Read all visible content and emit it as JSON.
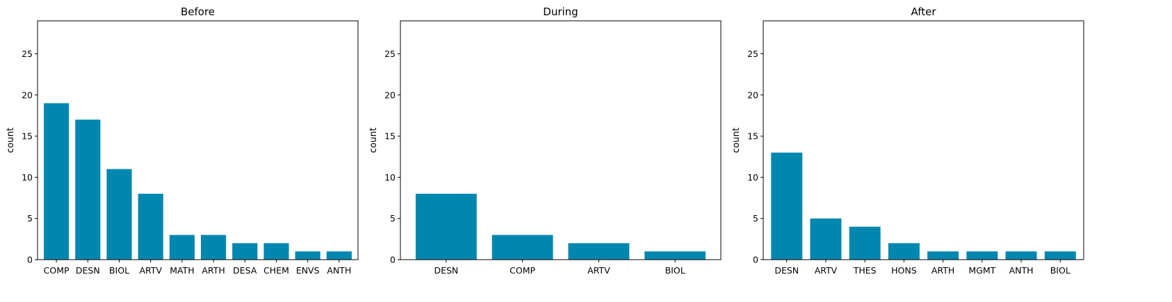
{
  "bar_color": "#0087AF",
  "chart_data": [
    {
      "type": "bar",
      "title": "Before",
      "xlabel": "",
      "ylabel": "count",
      "ylim": [
        0,
        29
      ],
      "yticks": [
        0,
        5,
        10,
        15,
        20,
        25
      ],
      "grid": false,
      "categories": [
        "COMP",
        "DESN",
        "BIOL",
        "ARTV",
        "MATH",
        "ARTH",
        "DESA",
        "CHEM",
        "ENVS",
        "ANTH"
      ],
      "values": [
        19,
        17,
        11,
        8,
        3,
        3,
        2,
        2,
        1,
        1
      ]
    },
    {
      "type": "bar",
      "title": "During",
      "xlabel": "",
      "ylabel": "count",
      "ylim": [
        0,
        29
      ],
      "yticks": [
        0,
        5,
        10,
        15,
        20,
        25
      ],
      "grid": false,
      "categories": [
        "DESN",
        "COMP",
        "ARTV",
        "BIOL"
      ],
      "values": [
        8,
        3,
        2,
        1
      ]
    },
    {
      "type": "bar",
      "title": "After",
      "xlabel": "",
      "ylabel": "count",
      "ylim": [
        0,
        29
      ],
      "yticks": [
        0,
        5,
        10,
        15,
        20,
        25
      ],
      "grid": false,
      "categories": [
        "DESN",
        "ARTV",
        "THES",
        "HONS",
        "ARTH",
        "MGMT",
        "ANTH",
        "BIOL"
      ],
      "values": [
        13,
        5,
        4,
        2,
        1,
        1,
        1,
        1
      ]
    }
  ]
}
